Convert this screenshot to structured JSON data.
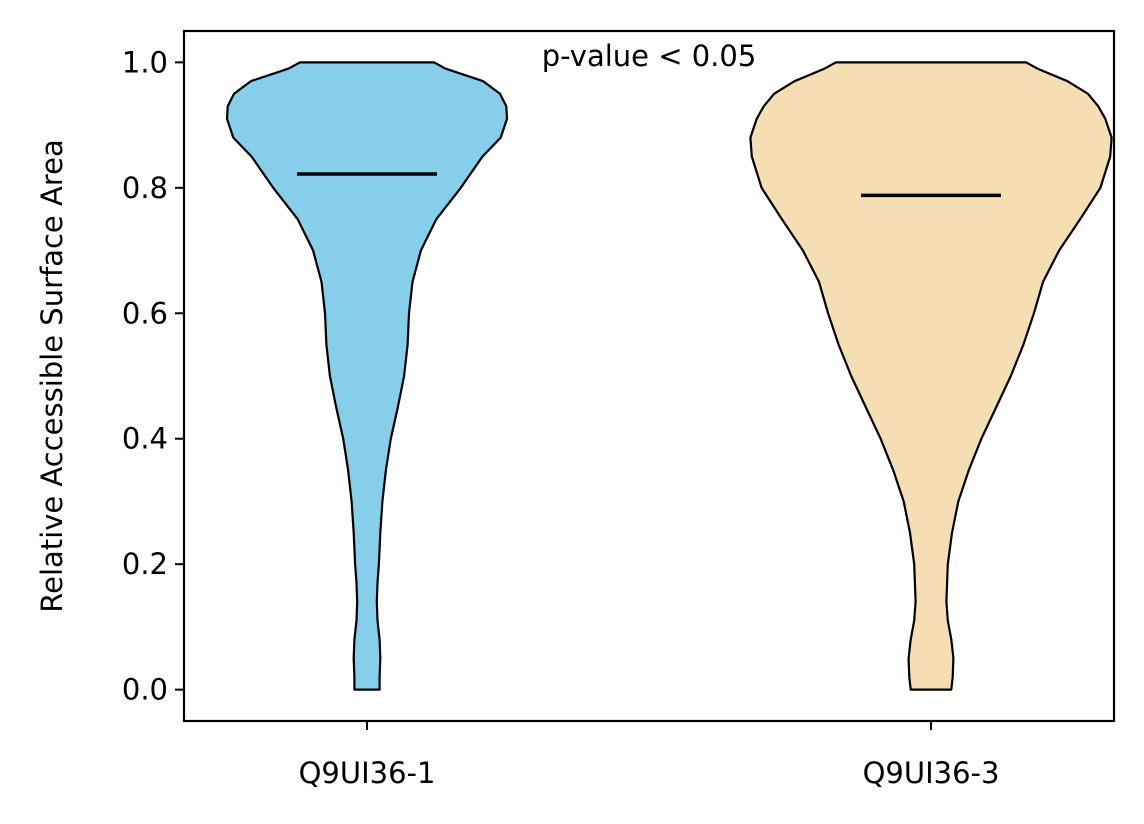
{
  "chart_data": {
    "type": "violin",
    "title": "",
    "xlabel": "",
    "ylabel": "Relative Accessible Surface Area",
    "ylim": [
      -0.05,
      1.05
    ],
    "yticks": [
      "0.0",
      "0.2",
      "0.4",
      "0.6",
      "0.8",
      "1.0"
    ],
    "grid": false,
    "categories": [
      "Q9UI36-1",
      "Q9UI36-3"
    ],
    "annotation": "p-value < 0.05",
    "series": [
      {
        "category": "Q9UI36-1",
        "color": "#87CEEB",
        "mean": 0.822,
        "range": [
          0.0,
          1.0
        ],
        "density_profile": [
          [
            0.0,
            0.18
          ],
          [
            0.02,
            0.18
          ],
          [
            0.05,
            0.19
          ],
          [
            0.08,
            0.18
          ],
          [
            0.11,
            0.15
          ],
          [
            0.14,
            0.14
          ],
          [
            0.17,
            0.15
          ],
          [
            0.2,
            0.17
          ],
          [
            0.25,
            0.19
          ],
          [
            0.3,
            0.22
          ],
          [
            0.35,
            0.27
          ],
          [
            0.4,
            0.34
          ],
          [
            0.45,
            0.44
          ],
          [
            0.5,
            0.53
          ],
          [
            0.55,
            0.58
          ],
          [
            0.6,
            0.6
          ],
          [
            0.65,
            0.65
          ],
          [
            0.7,
            0.77
          ],
          [
            0.75,
            0.99
          ],
          [
            0.8,
            1.34
          ],
          [
            0.85,
            1.65
          ],
          [
            0.88,
            1.91
          ],
          [
            0.91,
            2.0
          ],
          [
            0.93,
            1.99
          ],
          [
            0.95,
            1.9
          ],
          [
            0.97,
            1.66
          ],
          [
            0.99,
            1.12
          ],
          [
            1.0,
            0.96
          ]
        ]
      },
      {
        "category": "Q9UI36-3",
        "color": "#F5DEB3",
        "mean": 0.788,
        "range": [
          0.0,
          1.0
        ],
        "density_profile": [
          [
            0.0,
            0.29
          ],
          [
            0.02,
            0.31
          ],
          [
            0.05,
            0.32
          ],
          [
            0.08,
            0.29
          ],
          [
            0.11,
            0.24
          ],
          [
            0.14,
            0.22
          ],
          [
            0.17,
            0.23
          ],
          [
            0.2,
            0.24
          ],
          [
            0.25,
            0.3
          ],
          [
            0.3,
            0.39
          ],
          [
            0.35,
            0.54
          ],
          [
            0.4,
            0.72
          ],
          [
            0.45,
            0.93
          ],
          [
            0.5,
            1.14
          ],
          [
            0.55,
            1.32
          ],
          [
            0.6,
            1.47
          ],
          [
            0.65,
            1.6
          ],
          [
            0.7,
            1.83
          ],
          [
            0.75,
            2.13
          ],
          [
            0.8,
            2.42
          ],
          [
            0.85,
            2.56
          ],
          [
            0.88,
            2.58
          ],
          [
            0.91,
            2.49
          ],
          [
            0.93,
            2.39
          ],
          [
            0.95,
            2.24
          ],
          [
            0.97,
            1.95
          ],
          [
            0.99,
            1.52
          ],
          [
            1.0,
            1.36
          ]
        ]
      }
    ]
  }
}
